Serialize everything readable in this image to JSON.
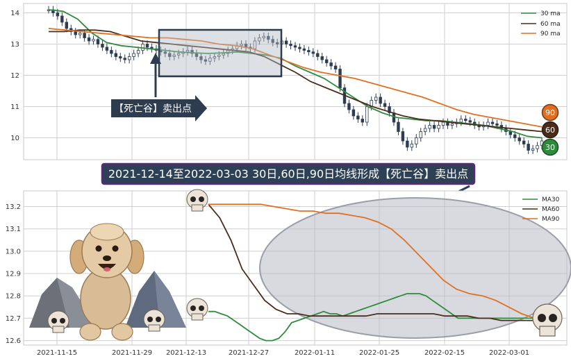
{
  "banner": "2021-12-14至2022-03-03 30日,60日,90日均线形成【死亡谷】卖出点",
  "sell_label": "【死亡谷】卖出点",
  "badges": {
    "ma90": "90",
    "ma60": "60",
    "ma30": "30"
  },
  "colors": {
    "ma30": "#2e8b3c",
    "ma60": "#4a2c1c",
    "ma90": "#e07020",
    "candle": "#2d3c52",
    "banner_bg": "#2e4055",
    "banner_border": "#5a2a7a"
  },
  "chart_data": [
    {
      "type": "line",
      "title": "",
      "ylim": [
        9.3,
        14.3
      ],
      "yticks": [
        10,
        11,
        12,
        13,
        14
      ],
      "grid": true,
      "legend_position": "top-right",
      "candles": [
        14.1,
        14.0,
        13.9,
        13.7,
        13.5,
        13.4,
        13.3,
        13.35,
        13.2,
        13.1,
        13.15,
        13.0,
        12.9,
        12.8,
        12.7,
        12.6,
        12.55,
        12.5,
        12.6,
        12.7,
        12.8,
        13.0,
        12.9,
        12.85,
        12.8,
        12.75,
        12.7,
        12.6,
        12.65,
        12.7,
        12.75,
        12.8,
        12.7,
        12.6,
        12.5,
        12.45,
        12.55,
        12.6,
        12.65,
        12.7,
        12.8,
        12.85,
        12.95,
        13.0,
        12.9,
        12.85,
        13.1,
        13.2,
        13.25,
        13.15,
        13.05,
        13.0,
        13.1,
        13.0,
        12.95,
        12.9,
        12.85,
        12.8,
        12.75,
        12.7,
        12.6,
        12.5,
        12.4,
        12.3,
        12.2,
        11.6,
        11.1,
        10.9,
        10.7,
        10.6,
        10.5,
        11.0,
        11.2,
        11.3,
        11.1,
        11.0,
        10.8,
        10.5,
        10.2,
        9.9,
        9.7,
        9.8,
        10.0,
        10.2,
        10.3,
        10.4,
        10.3,
        10.4,
        10.5,
        10.4,
        10.45,
        10.5,
        10.6,
        10.55,
        10.5,
        10.4,
        10.35,
        10.4,
        10.5,
        10.45,
        10.4,
        10.3,
        10.2,
        10.1,
        10.0,
        9.9,
        9.8,
        9.6,
        9.65,
        9.75,
        9.9
      ],
      "series": [
        {
          "name": "30 ma",
          "values": [
            14.1,
            14.05,
            13.8,
            13.35,
            13.05,
            12.95,
            12.9,
            12.85,
            12.8,
            12.75,
            12.72,
            12.7,
            12.72,
            12.75,
            12.7,
            12.65,
            12.55,
            12.3,
            12.1,
            11.9,
            11.6,
            11.3,
            11.0,
            10.8,
            10.65,
            10.6,
            10.55,
            10.55,
            10.5,
            10.45,
            10.4,
            10.3,
            10.2,
            10.05,
            10.0
          ]
        },
        {
          "name": "60 ma",
          "values": [
            13.4,
            13.4,
            13.45,
            13.45,
            13.4,
            13.25,
            13.1,
            13.05,
            13.0,
            12.95,
            12.9,
            12.85,
            12.8,
            12.75,
            12.6,
            12.35,
            12.1,
            11.8,
            11.6,
            11.4,
            11.2,
            11.0,
            10.85,
            10.7,
            10.6,
            10.55,
            10.5,
            10.45,
            10.4,
            10.35,
            10.3,
            10.25,
            10.2
          ]
        },
        {
          "name": "90 ma",
          "values": [
            13.5,
            13.45,
            13.4,
            13.35,
            13.3,
            13.25,
            13.2,
            13.2,
            13.15,
            13.1,
            13.0,
            12.95,
            12.85,
            12.65,
            12.45,
            12.25,
            12.1,
            12.0,
            11.9,
            11.75,
            11.6,
            11.45,
            11.3,
            11.1,
            10.9,
            10.75,
            10.65,
            10.55,
            10.45,
            10.35
          ]
        }
      ]
    },
    {
      "type": "line",
      "title": "",
      "ylim": [
        12.58,
        13.27
      ],
      "yticks": [
        12.6,
        12.7,
        12.8,
        12.9,
        13.0,
        13.1,
        13.2
      ],
      "xticks": [
        "2021-11-15",
        "2021-11-29",
        "2021-12-13",
        "2021-12-27",
        "2022-01-11",
        "2022-01-25",
        "2022-02-15",
        "2022-03-01"
      ],
      "grid": true,
      "legend_position": "top-right",
      "series": [
        {
          "name": "MA30",
          "x": [
            0,
            1,
            2,
            3,
            4,
            5,
            6,
            7,
            8,
            9,
            10,
            11,
            12,
            13,
            14,
            15,
            16,
            17,
            18,
            19,
            20,
            21,
            22,
            23,
            24,
            25,
            26,
            27,
            28,
            29,
            30,
            31,
            32,
            33,
            34,
            35,
            36,
            37,
            38,
            39,
            40,
            41,
            42,
            43,
            44,
            45,
            46,
            47,
            48,
            49,
            50,
            51
          ],
          "values": [
            12.73,
            12.73,
            12.72,
            12.71,
            12.69,
            12.67,
            12.65,
            12.63,
            12.61,
            12.6,
            12.6,
            12.61,
            12.64,
            12.68,
            12.69,
            12.7,
            12.71,
            12.72,
            12.73,
            12.72,
            12.72,
            12.71,
            12.72,
            12.73,
            12.74,
            12.75,
            12.76,
            12.77,
            12.78,
            12.79,
            12.8,
            12.81,
            12.81,
            12.81,
            12.8,
            12.78,
            12.76,
            12.74,
            12.72,
            12.7,
            12.7,
            12.7,
            12.7,
            12.7,
            12.7,
            12.7,
            12.7,
            12.7,
            12.7,
            12.7,
            12.7,
            12.7
          ]
        },
        {
          "name": "MA60",
          "values": [
            13.21,
            13.15,
            13.05,
            12.92,
            12.85,
            12.78,
            12.74,
            12.72,
            12.72,
            12.71,
            12.71,
            12.71,
            12.71,
            12.71,
            12.71,
            12.72,
            12.72,
            12.72,
            12.72,
            12.72,
            12.72,
            12.71,
            12.71,
            12.71,
            12.7,
            12.7,
            12.69,
            12.69,
            12.69,
            12.69
          ]
        },
        {
          "name": "MA90",
          "values": [
            13.21,
            13.21,
            13.21,
            13.21,
            13.21,
            13.2,
            13.19,
            13.18,
            13.18,
            13.17,
            13.17,
            13.16,
            13.15,
            13.13,
            13.1,
            13.05,
            12.99,
            12.93,
            12.87,
            12.83,
            12.81,
            12.8,
            12.78,
            12.75,
            12.72,
            12.7
          ]
        }
      ]
    }
  ]
}
